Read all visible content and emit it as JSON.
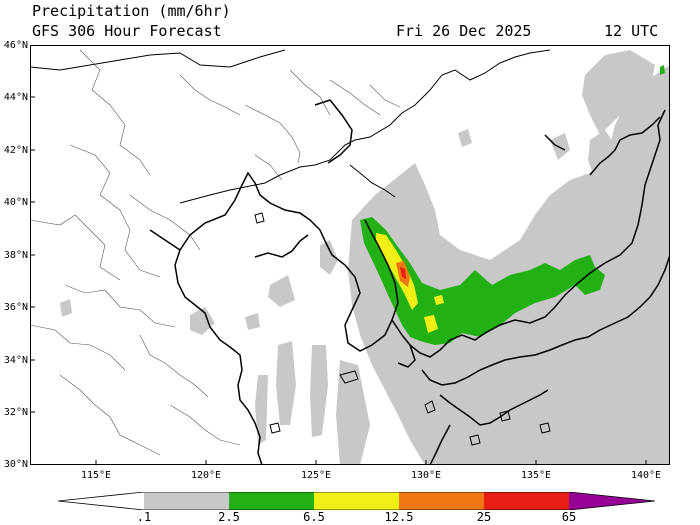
{
  "header": {
    "line1": "Precipitation (mm/6hr)",
    "line2": "GFS 306 Hour Forecast",
    "date": "Fri 26 Dec 2025",
    "time": "12 UTC"
  },
  "map": {
    "lat_labels": [
      "46°N",
      "44°N",
      "42°N",
      "40°N",
      "38°N",
      "36°N",
      "34°N",
      "32°N",
      "30°N"
    ],
    "lon_labels": [
      "115°E",
      "120°E",
      "125°E",
      "130°E",
      "135°E",
      "140°E"
    ],
    "colors": {
      "light_gray": "#c8c8c8",
      "green": "#22b014",
      "yellow": "#f0f016",
      "orange": "#f07814",
      "red": "#e61e14",
      "purple": "#960096"
    }
  },
  "colorbar": {
    "labels": [
      ".1",
      "2.5",
      "6.5",
      "12.5",
      "25",
      "65"
    ],
    "colors": [
      "#ffffff",
      "#c8c8c8",
      "#22b014",
      "#f0f016",
      "#f07814",
      "#e61e14",
      "#960096"
    ]
  }
}
